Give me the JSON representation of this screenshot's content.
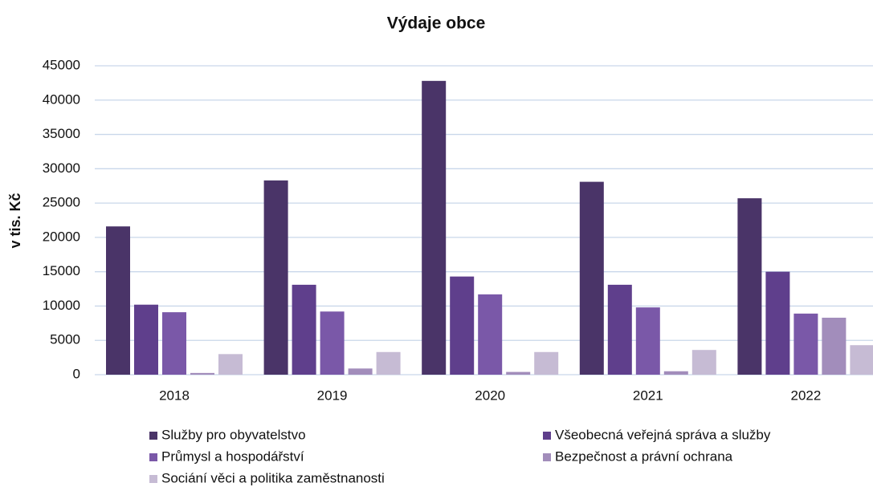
{
  "chart_data": {
    "type": "bar",
    "title": "Výdaje obce",
    "y_label": "v tis. Kč",
    "categories": [
      "2018",
      "2019",
      "2020",
      "2021",
      "2022"
    ],
    "series": [
      {
        "name": "Služby pro obyvatelstvo",
        "color": "#4a3468",
        "values": [
          21600,
          28300,
          42800,
          28100,
          25700
        ]
      },
      {
        "name": "Všeobecná veřejná správa a služby",
        "color": "#5f3f8c",
        "values": [
          10200,
          13100,
          14300,
          13100,
          15000
        ]
      },
      {
        "name": "Průmysl a hospodářství",
        "color": "#7a58a8",
        "values": [
          9100,
          9200,
          11700,
          9800,
          8900
        ]
      },
      {
        "name": "Bezpečnost a právní ochrana",
        "color": "#a28dbb",
        "values": [
          250,
          900,
          400,
          500,
          8300
        ]
      },
      {
        "name": "Sociání věci a politika zaměstnanosti",
        "color": "#c6bbd4",
        "values": [
          3000,
          3300,
          3300,
          3600,
          4300
        ]
      }
    ],
    "ylim": [
      0,
      45000
    ],
    "yticks": [
      0,
      5000,
      10000,
      15000,
      20000,
      25000,
      30000,
      35000,
      40000,
      45000
    ],
    "grid": true
  }
}
